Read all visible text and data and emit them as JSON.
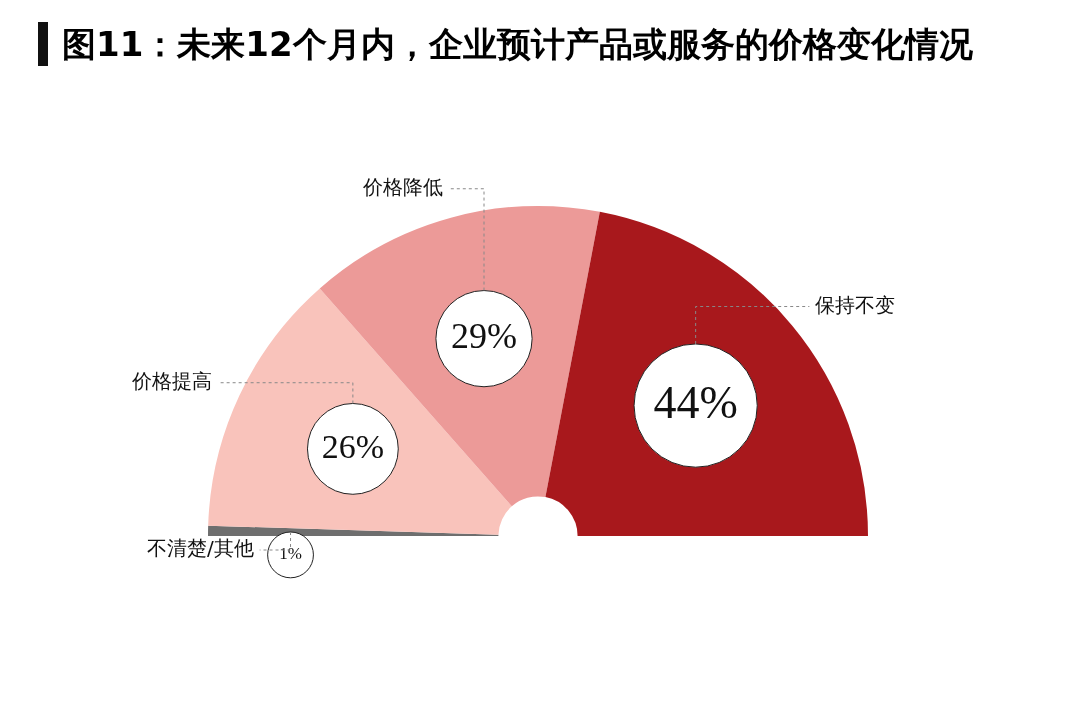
{
  "chart_data": {
    "type": "pie",
    "title": "图11：未来12个月内，企业预计产品或服务的价格变化情况",
    "categories": [
      "不清楚/其他",
      "价格提高",
      "价格降低",
      "保持不变"
    ],
    "values": [
      1,
      26,
      29,
      44
    ],
    "colors": [
      "#6e6e6e",
      "#f9c3bb",
      "#ec9a98",
      "#a8181c"
    ],
    "data_labels": true,
    "value_labels": [
      "1%",
      "26%",
      "29%",
      "44%"
    ],
    "legend": false
  }
}
